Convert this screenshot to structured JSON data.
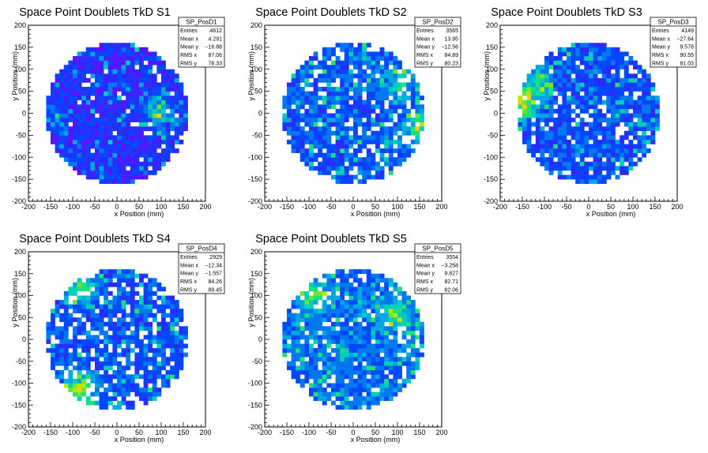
{
  "colors": {
    "palette": [
      "#8e00f5",
      "#5a13ff",
      "#2a2cff",
      "#0048ff",
      "#0078f0",
      "#00a8e0",
      "#00d0b8",
      "#20e07a",
      "#6ae830",
      "#b8e800",
      "#f0d000",
      "#ff8800",
      "#ff2a00"
    ],
    "frame": "#000000",
    "background": "#ffffff"
  },
  "chart_data": [
    {
      "type": "heatmap",
      "title": "Space Point Doublets TkD S1",
      "xlabel": "x Position (mm)",
      "ylabel": "y Position (mm)",
      "xlim": [
        -200,
        200
      ],
      "ylim": [
        -200,
        200
      ],
      "xticks": [
        -200,
        -150,
        -100,
        -50,
        0,
        50,
        100,
        150,
        200
      ],
      "yticks": [
        -200,
        -150,
        -100,
        -50,
        0,
        50,
        100,
        150,
        200
      ],
      "disk_radius": 160,
      "bin_width": 10,
      "fill_fraction": 0.95,
      "seed": 11,
      "hotspots": [
        {
          "x": 95,
          "y": 0,
          "w": 4
        },
        {
          "x": -150,
          "y": 0,
          "w": 2
        }
      ],
      "base_level": 1.6,
      "stats": {
        "name": "SP_PosD1",
        "rows": [
          {
            "label": "Entries",
            "value": "4612"
          },
          {
            "label": "Mean x",
            "value": "4.291"
          },
          {
            "label": "Mean y",
            "value": "−16.88"
          },
          {
            "label": "RMS x",
            "value": "87.06"
          },
          {
            "label": "RMS y",
            "value": "78.33"
          }
        ]
      }
    },
    {
      "type": "heatmap",
      "title": "Space Point Doublets TkD S2",
      "xlabel": "x Position (mm)",
      "ylabel": "y Position (mm)",
      "xlim": [
        -200,
        200
      ],
      "ylim": [
        -200,
        200
      ],
      "xticks": [
        -200,
        -150,
        -100,
        -50,
        0,
        50,
        100,
        150,
        200
      ],
      "yticks": [
        -200,
        -150,
        -100,
        -50,
        0,
        50,
        100,
        150,
        200
      ],
      "disk_radius": 160,
      "bin_width": 10,
      "fill_fraction": 0.82,
      "seed": 23,
      "hotspots": [
        {
          "x": 155,
          "y": -30,
          "w": 5
        },
        {
          "x": 100,
          "y": 70,
          "w": 3
        }
      ],
      "base_level": 2.8,
      "stats": {
        "name": "SP_PosD2",
        "rows": [
          {
            "label": "Entries",
            "value": "3565"
          },
          {
            "label": "Mean x",
            "value": "13.95"
          },
          {
            "label": "Mean y",
            "value": "−12.56"
          },
          {
            "label": "RMS x",
            "value": "84.89"
          },
          {
            "label": "RMS y",
            "value": "80.23"
          }
        ]
      }
    },
    {
      "type": "heatmap",
      "title": "Space Point Doublets TkD S3",
      "xlabel": "x Position (mm)",
      "ylabel": "y Position (mm)",
      "xlim": [
        -200,
        200
      ],
      "ylim": [
        -200,
        200
      ],
      "xticks": [
        -200,
        -150,
        -100,
        -50,
        0,
        50,
        100,
        150,
        200
      ],
      "yticks": [
        -200,
        -150,
        -100,
        -50,
        0,
        50,
        100,
        150,
        200
      ],
      "disk_radius": 160,
      "bin_width": 10,
      "fill_fraction": 0.88,
      "seed": 37,
      "hotspots": [
        {
          "x": -150,
          "y": 20,
          "w": 6
        },
        {
          "x": -120,
          "y": 70,
          "w": 3
        }
      ],
      "base_level": 2.5,
      "stats": {
        "name": "SP_PosD3",
        "rows": [
          {
            "label": "Entries",
            "value": "4149"
          },
          {
            "label": "Mean x",
            "value": "−27.64"
          },
          {
            "label": "Mean y",
            "value": "9.578"
          },
          {
            "label": "RMS x",
            "value": "90.55"
          },
          {
            "label": "RMS y",
            "value": "81.03"
          }
        ]
      }
    },
    {
      "type": "heatmap",
      "title": "Space Point Doublets TkD S4",
      "xlabel": "x Position (mm)",
      "ylabel": "y Position (mm)",
      "xlim": [
        -200,
        200
      ],
      "ylim": [
        -200,
        200
      ],
      "xticks": [
        -200,
        -150,
        -100,
        -50,
        0,
        50,
        100,
        150,
        200
      ],
      "yticks": [
        -200,
        -150,
        -100,
        -50,
        0,
        50,
        100,
        150,
        200
      ],
      "disk_radius": 160,
      "bin_width": 10,
      "fill_fraction": 0.8,
      "seed": 41,
      "hotspots": [
        {
          "x": -85,
          "y": -110,
          "w": 6
        },
        {
          "x": -80,
          "y": 120,
          "w": 4
        }
      ],
      "base_level": 2.6,
      "stats": {
        "name": "SP_PosD4",
        "rows": [
          {
            "label": "Entries",
            "value": "2929"
          },
          {
            "label": "Mean x",
            "value": "−12.34"
          },
          {
            "label": "Mean y",
            "value": "−1.557"
          },
          {
            "label": "RMS x",
            "value": "84.26"
          },
          {
            "label": "RMS y",
            "value": "89.45"
          }
        ]
      }
    },
    {
      "type": "heatmap",
      "title": "Space Point Doublets TkD S5",
      "xlabel": "x Position (mm)",
      "ylabel": "y Position (mm)",
      "xlim": [
        -200,
        200
      ],
      "ylim": [
        -200,
        200
      ],
      "xticks": [
        -200,
        -150,
        -100,
        -50,
        0,
        50,
        100,
        150,
        200
      ],
      "yticks": [
        -200,
        -150,
        -100,
        -50,
        0,
        50,
        100,
        150,
        200
      ],
      "disk_radius": 160,
      "bin_width": 10,
      "fill_fraction": 0.88,
      "seed": 53,
      "hotspots": [
        {
          "x": -90,
          "y": 100,
          "w": 4
        },
        {
          "x": 100,
          "y": 60,
          "w": 3
        }
      ],
      "base_level": 3.2,
      "stats": {
        "name": "SP_PosD5",
        "rows": [
          {
            "label": "Entries",
            "value": "3554"
          },
          {
            "label": "Mean x",
            "value": "−3.258"
          },
          {
            "label": "Mean y",
            "value": "9.827"
          },
          {
            "label": "RMS x",
            "value": "82.71"
          },
          {
            "label": "RMS y",
            "value": "82.06"
          }
        ]
      }
    }
  ]
}
